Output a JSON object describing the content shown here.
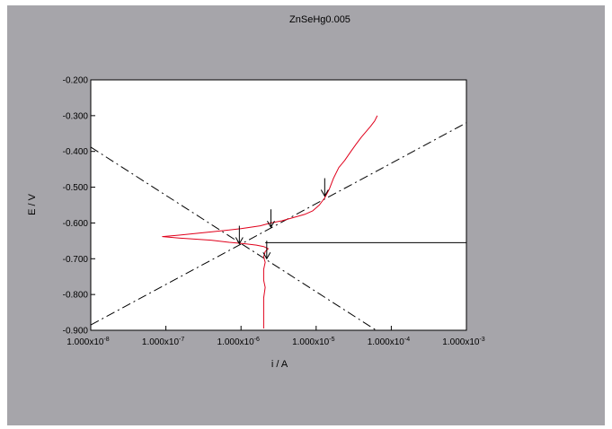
{
  "chart_data": {
    "type": "line",
    "title": "ZnSeHg0.005",
    "xlabel": "i / A",
    "ylabel": "E / V",
    "x_scale": "log",
    "xlim": [
      1e-08,
      0.001
    ],
    "ylim": [
      -0.9,
      -0.2
    ],
    "grid": false,
    "legend": "none",
    "x_ticks": [
      {
        "value": 1e-08,
        "mantissa": "1.000x10",
        "exp": "-8"
      },
      {
        "value": 1e-07,
        "mantissa": "1.000x10",
        "exp": "-7"
      },
      {
        "value": 1e-06,
        "mantissa": "1.000x10",
        "exp": "-6"
      },
      {
        "value": 1e-05,
        "mantissa": "1.000x10",
        "exp": "-5"
      },
      {
        "value": 0.0001,
        "mantissa": "1.000x10",
        "exp": "-4"
      },
      {
        "value": 0.001,
        "mantissa": "1.000x10",
        "exp": "-3"
      }
    ],
    "y_ticks": [
      {
        "value": -0.2,
        "label": "-0.200"
      },
      {
        "value": -0.3,
        "label": "-0.300"
      },
      {
        "value": -0.4,
        "label": "-0.400"
      },
      {
        "value": -0.5,
        "label": "-0.500"
      },
      {
        "value": -0.6,
        "label": "-0.600"
      },
      {
        "value": -0.7,
        "label": "-0.700"
      },
      {
        "value": -0.8,
        "label": "-0.800"
      },
      {
        "value": -0.9,
        "label": "-0.900"
      }
    ],
    "colors": {
      "panel": "#a6a5aa",
      "plot_bg": "#ffffff",
      "curve": "#e0001b",
      "ink": "#000000"
    },
    "polarization_curve": {
      "x": [
        2e-06,
        2e-06,
        2e-06,
        2e-06,
        2.1e-06,
        2e-06,
        2e-06,
        2.1e-06,
        2e-06,
        2.1e-06,
        2.3e-06,
        2e-06,
        1.6e-06,
        1.1e-06,
        7e-07,
        4e-07,
        1.5e-07,
        9e-08,
        1.5e-07,
        4e-07,
        1e-06,
        1.8e-06,
        2.5e-06,
        3.5e-06,
        5e-06,
        7e-06,
        9e-06,
        1.1e-05,
        1.3e-05,
        1.5e-05,
        1.7e-05,
        2e-05,
        2.4e-05,
        2.9e-05,
        3.4e-05,
        4e-05,
        4.6e-05,
        5.3e-05,
        6e-05,
        6.5e-05
      ],
      "y": [
        -0.895,
        -0.87,
        -0.84,
        -0.81,
        -0.78,
        -0.76,
        -0.73,
        -0.71,
        -0.695,
        -0.68,
        -0.672,
        -0.666,
        -0.662,
        -0.658,
        -0.654,
        -0.648,
        -0.642,
        -0.638,
        -0.634,
        -0.625,
        -0.616,
        -0.608,
        -0.6,
        -0.594,
        -0.585,
        -0.576,
        -0.566,
        -0.55,
        -0.53,
        -0.505,
        -0.475,
        -0.445,
        -0.425,
        -0.4,
        -0.38,
        -0.36,
        -0.345,
        -0.33,
        -0.315,
        -0.3
      ]
    },
    "tafel_lines": [
      {
        "x": [
          1e-08,
          6.3e-05
        ],
        "y": [
          -0.388,
          -0.9
        ]
      },
      {
        "x": [
          1e-08,
          0.001
        ],
        "y": [
          -0.885,
          -0.32
        ]
      }
    ],
    "horizontal_line": {
      "y": -0.655,
      "x_from": 2.1e-06,
      "x_to": 0.001
    },
    "markers": [
      {
        "x": 2.5e-06,
        "y": -0.612
      },
      {
        "x": 1.3e-05,
        "y": -0.525
      },
      {
        "x": 9.5e-07,
        "y": -0.658
      },
      {
        "x": 2.2e-06,
        "y": -0.7
      }
    ]
  }
}
